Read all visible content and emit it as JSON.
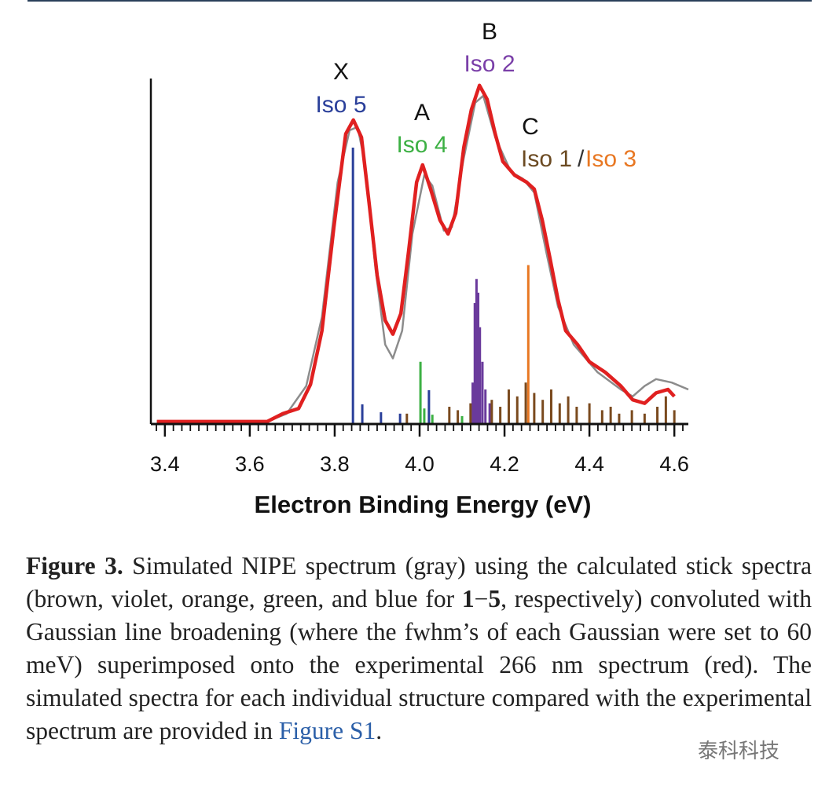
{
  "chart_data": {
    "type": "spectrum",
    "xlabel": "Electron Binding Energy (eV)",
    "xlim": [
      3.367,
      4.633
    ],
    "ylim": [
      0,
      1
    ],
    "xticks": [
      3.4,
      3.6,
      3.8,
      {
        "value": 4,
        "label": "4.0"
      },
      4.2,
      4.4,
      4.6
    ],
    "xminorticks": [
      3.38,
      3.4,
      3.42,
      3.44,
      3.46,
      3.48,
      3.5,
      3.52,
      3.54,
      3.56,
      3.58,
      3.6,
      3.62,
      3.64,
      3.66,
      3.68,
      3.7,
      3.72,
      3.74,
      3.76,
      3.78,
      3.8,
      3.82,
      3.84,
      3.86,
      3.88,
      3.9,
      3.92,
      3.94,
      3.96,
      3.98,
      4,
      4.02,
      4.04,
      4.06,
      4.08,
      4.1,
      4.12,
      4.14,
      4.16,
      4.18,
      4.2,
      4.22,
      4.24,
      4.26,
      4.28,
      4.3,
      4.32,
      4.34,
      4.36,
      4.38,
      4.4,
      4.42,
      4.44,
      4.46,
      4.48,
      4.5,
      4.52,
      4.54,
      4.56,
      4.58,
      4.6,
      4.62
    ],
    "series": [
      {
        "color": "#e02020",
        "x": [
          3.381,
          3.493,
          3.641,
          3.678,
          3.715,
          3.743,
          3.77,
          3.798,
          3.826,
          3.844,
          3.863,
          3.881,
          3.9,
          3.919,
          3.937,
          3.956,
          3.974,
          3.993,
          4.007,
          4.026,
          4.048,
          4.067,
          4.085,
          4.104,
          4.122,
          4.141,
          4.159,
          4.178,
          4.196,
          4.224,
          4.252,
          4.27,
          4.289,
          4.307,
          4.326,
          4.344,
          4.372,
          4.4,
          4.437,
          4.474,
          4.502,
          4.53,
          4.557,
          4.585,
          4.6
        ],
        "values": [
          0.007,
          0.007,
          0.007,
          0.03,
          0.045,
          0.114,
          0.27,
          0.57,
          0.84,
          0.88,
          0.83,
          0.64,
          0.43,
          0.3,
          0.26,
          0.32,
          0.5,
          0.7,
          0.75,
          0.68,
          0.59,
          0.55,
          0.61,
          0.8,
          0.91,
          0.98,
          0.94,
          0.84,
          0.76,
          0.72,
          0.7,
          0.68,
          0.59,
          0.48,
          0.36,
          0.27,
          0.23,
          0.18,
          0.15,
          0.11,
          0.07,
          0.06,
          0.09,
          0.1,
          0.08
        ]
      },
      {
        "color": "#8c8c8c",
        "x": [
          3.381,
          3.641,
          3.687,
          3.733,
          3.77,
          3.807,
          3.835,
          3.854,
          3.872,
          3.896,
          3.919,
          3.937,
          3.959,
          3.983,
          4.011,
          4.03,
          4.057,
          4.076,
          4.104,
          4.131,
          4.15,
          4.178,
          4.215,
          4.243,
          4.27,
          4.298,
          4.326,
          4.363,
          4.419,
          4.474,
          4.502,
          4.53,
          4.557,
          4.594,
          4.633
        ],
        "values": [
          0.007,
          0.007,
          0.03,
          0.11,
          0.31,
          0.7,
          0.85,
          0.86,
          0.75,
          0.45,
          0.23,
          0.19,
          0.27,
          0.55,
          0.72,
          0.69,
          0.56,
          0.57,
          0.77,
          0.93,
          0.95,
          0.83,
          0.73,
          0.71,
          0.67,
          0.5,
          0.34,
          0.23,
          0.15,
          0.1,
          0.08,
          0.11,
          0.13,
          0.12,
          0.1
        ]
      }
    ],
    "sticks": [
      {
        "color": "#2a3f9a",
        "x": [
          3.843,
          3.865,
          3.909,
          3.954,
          4.022
        ],
        "values": [
          0.8,
          0.057,
          0.034,
          0.03,
          0.098
        ]
      },
      {
        "color": "#3cb043",
        "x": [
          4.002,
          4.011,
          4.03,
          4.1
        ],
        "values": [
          0.18,
          0.045,
          0.027,
          0.023
        ]
      },
      {
        "color": "#6a3a9c",
        "x": [
          4.125,
          4.13,
          4.134,
          4.138,
          4.142,
          4.148,
          4.155,
          4.165
        ],
        "values": [
          0.12,
          0.35,
          0.42,
          0.38,
          0.28,
          0.18,
          0.1,
          0.06
        ]
      },
      {
        "color": "#e87722",
        "x": [
          4.256
        ],
        "values": [
          0.46
        ]
      },
      {
        "color": "#7a4a1e",
        "x": [
          3.97,
          4.07,
          4.09,
          4.12,
          4.17,
          4.19,
          4.21,
          4.23,
          4.25,
          4.27,
          4.29,
          4.31,
          4.33,
          4.35,
          4.37,
          4.4,
          4.43,
          4.45,
          4.47,
          4.5,
          4.53,
          4.56,
          4.58,
          4.6
        ],
        "values": [
          0.03,
          0.05,
          0.04,
          0.06,
          0.07,
          0.05,
          0.1,
          0.08,
          0.12,
          0.09,
          0.07,
          0.1,
          0.06,
          0.08,
          0.05,
          0.06,
          0.04,
          0.05,
          0.03,
          0.04,
          0.03,
          0.05,
          0.08,
          0.04
        ]
      }
    ],
    "annotations": [
      "X",
      "Iso 5",
      "A",
      "Iso 4",
      "B",
      "Iso 2",
      "C",
      "Iso 1",
      "/",
      "Iso 3"
    ]
  },
  "caption": [
    "Figure 3.",
    " Simulated NIPE spectrum (gray) using the calculated stick spectra (brown, violet, orange, green, and blue for ",
    "1",
    "−",
    "5",
    ", respectively) convoluted with Gaussian line broadening (where the fwhm’s of each Gaussian were set to 60 meV) superimposed onto the experimental 266 nm spectrum (red). The simulated spectra for each individual structure compared with the experimental spectrum are provided in ",
    "Figure S1",
    "."
  ],
  "watermark": "泰科科技"
}
